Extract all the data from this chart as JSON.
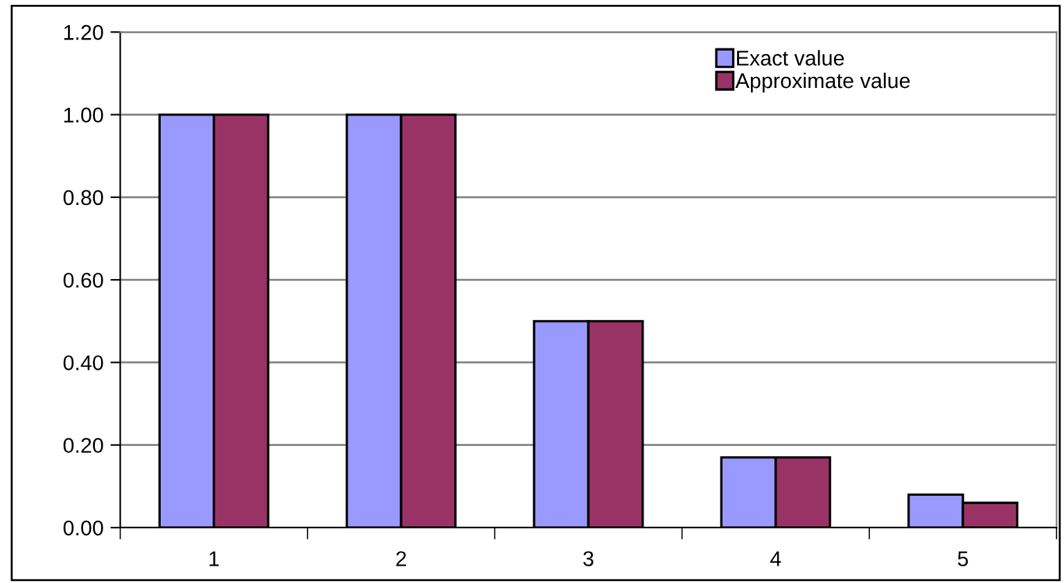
{
  "chart_data": {
    "type": "bar",
    "categories": [
      "1",
      "2",
      "3",
      "4",
      "5"
    ],
    "series": [
      {
        "name": "Exact value",
        "color": "#9999ff",
        "values": [
          1.0,
          1.0,
          0.5,
          0.17,
          0.08
        ]
      },
      {
        "name": "Approximate value",
        "color": "#993366",
        "values": [
          1.0,
          1.0,
          0.5,
          0.17,
          0.06
        ]
      }
    ],
    "ylim": [
      0,
      1.2
    ],
    "yticks": [
      {
        "value": 0,
        "label": "0.00"
      },
      {
        "value": 0.2,
        "label": "0.20"
      },
      {
        "value": 0.4,
        "label": "0.40"
      },
      {
        "value": 0.6,
        "label": "0.60"
      },
      {
        "value": 0.8,
        "label": "0.80"
      },
      {
        "value": 1.0,
        "label": "1.00"
      },
      {
        "value": 1.2,
        "label": "1.20"
      }
    ],
    "grid": "y",
    "legend": "top right"
  }
}
